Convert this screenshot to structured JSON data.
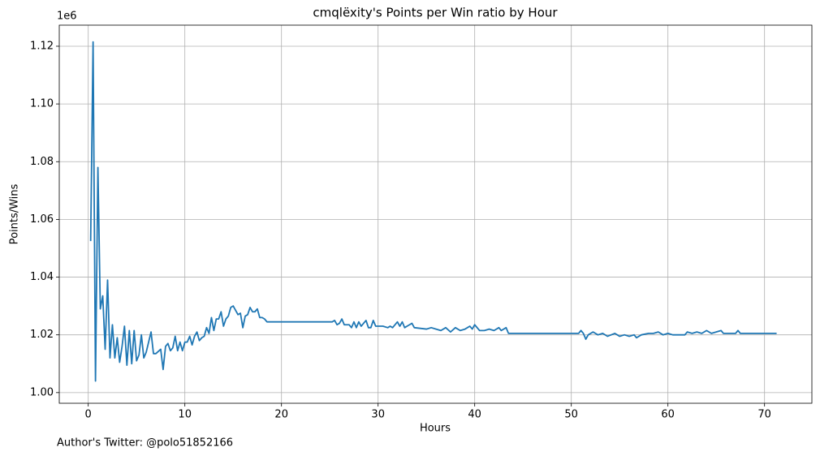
{
  "chart_data": {
    "type": "line",
    "title": "cmqlëxity's Points per Win ratio by Hour",
    "x_label": "Hours",
    "y_label": "Points/Wins",
    "y_offset_label": "1e6",
    "footnote": "Author's Twitter: @polo51852166",
    "color": "#1f77b4",
    "grid": true,
    "xlim": [
      -3.0,
      74.9
    ],
    "ylim": [
      0.9963,
      1.1273
    ],
    "xticks": [
      0,
      10,
      20,
      30,
      40,
      50,
      60,
      70
    ],
    "yticks": [
      {
        "value": 1,
        "label": "1.00"
      },
      1.02,
      1.04,
      1.06,
      1.08,
      {
        "value": 1.1,
        "label": "1.10"
      },
      1.12
    ],
    "x": [
      0.25,
      0.5,
      0.75,
      1.0,
      1.25,
      1.5,
      1.75,
      2.0,
      2.25,
      2.5,
      2.75,
      3.0,
      3.25,
      3.5,
      3.75,
      4.0,
      4.25,
      4.5,
      4.75,
      5.0,
      5.25,
      5.5,
      5.75,
      6.0,
      6.25,
      6.5,
      6.75,
      7.0,
      7.5,
      7.75,
      8.0,
      8.25,
      8.5,
      8.75,
      9.0,
      9.25,
      9.5,
      9.75,
      10.0,
      10.25,
      10.5,
      10.75,
      11.0,
      11.25,
      11.5,
      11.75,
      12.0,
      12.25,
      12.5,
      12.75,
      13.0,
      13.25,
      13.5,
      13.75,
      14.0,
      14.25,
      14.5,
      14.75,
      15.0,
      15.25,
      15.5,
      15.75,
      16.0,
      16.25,
      16.5,
      16.75,
      17.0,
      17.25,
      17.5,
      17.75,
      18.0,
      18.25,
      18.5,
      25.25,
      25.5,
      25.75,
      26.0,
      26.25,
      26.5,
      27.0,
      27.25,
      27.5,
      27.75,
      28.0,
      28.25,
      28.5,
      28.75,
      29.0,
      29.25,
      29.5,
      29.75,
      30.5,
      31.0,
      31.25,
      31.5,
      32.0,
      32.25,
      32.5,
      32.75,
      33.0,
      33.5,
      33.75,
      35.0,
      35.5,
      36.0,
      36.5,
      37.0,
      37.5,
      38.0,
      38.5,
      39.0,
      39.5,
      39.75,
      40.0,
      40.5,
      41.0,
      41.5,
      42.0,
      42.5,
      42.75,
      43.25,
      43.5,
      50.75,
      51.0,
      51.25,
      51.5,
      51.75,
      52.25,
      52.75,
      53.25,
      53.75,
      54.5,
      55.0,
      55.5,
      56.0,
      56.5,
      56.75,
      57.25,
      58.0,
      58.5,
      59.0,
      59.5,
      60.0,
      60.5,
      61.75,
      62.0,
      62.5,
      63.0,
      63.5,
      64.0,
      64.5,
      65.0,
      65.5,
      65.75,
      67.0,
      67.25,
      67.5,
      71.25
    ],
    "values": [
      1.0525,
      1.1215,
      1.004,
      1.078,
      1.029,
      1.0335,
      1.015,
      1.039,
      1.012,
      1.0235,
      1.012,
      1.019,
      1.0105,
      1.016,
      1.023,
      1.0095,
      1.0215,
      1.01,
      1.0215,
      1.011,
      1.013,
      1.02,
      1.012,
      1.014,
      1.0175,
      1.021,
      1.0135,
      1.0135,
      1.015,
      1.008,
      1.016,
      1.017,
      1.0145,
      1.0155,
      1.0195,
      1.0145,
      1.0175,
      1.0145,
      1.0175,
      1.0175,
      1.0195,
      1.0165,
      1.0195,
      1.021,
      1.018,
      1.019,
      1.0195,
      1.0225,
      1.0205,
      1.026,
      1.0215,
      1.0255,
      1.0255,
      1.028,
      1.023,
      1.0255,
      1.0265,
      1.0295,
      1.03,
      1.0285,
      1.027,
      1.0275,
      1.0225,
      1.0265,
      1.027,
      1.0295,
      1.028,
      1.028,
      1.029,
      1.026,
      1.026,
      1.0255,
      1.0245,
      1.0245,
      1.025,
      1.0235,
      1.024,
      1.0255,
      1.0235,
      1.0235,
      1.0225,
      1.0245,
      1.0225,
      1.0245,
      1.023,
      1.024,
      1.025,
      1.0225,
      1.0225,
      1.025,
      1.023,
      1.023,
      1.0225,
      1.023,
      1.0225,
      1.0245,
      1.023,
      1.0245,
      1.0225,
      1.023,
      1.024,
      1.0225,
      1.022,
      1.0225,
      1.022,
      1.0215,
      1.0225,
      1.021,
      1.0225,
      1.0215,
      1.022,
      1.023,
      1.022,
      1.0235,
      1.0215,
      1.0215,
      1.022,
      1.0215,
      1.0225,
      1.0215,
      1.0225,
      1.0205,
      1.0205,
      1.0215,
      1.0205,
      1.0185,
      1.02,
      1.021,
      1.02,
      1.0205,
      1.0195,
      1.0205,
      1.0195,
      1.02,
      1.0195,
      1.02,
      1.019,
      1.02,
      1.0205,
      1.0205,
      1.021,
      1.02,
      1.0205,
      1.02,
      1.02,
      1.021,
      1.0205,
      1.021,
      1.0205,
      1.0215,
      1.0205,
      1.021,
      1.0215,
      1.0205,
      1.0205,
      1.0215,
      1.0205,
      1.0205
    ]
  }
}
